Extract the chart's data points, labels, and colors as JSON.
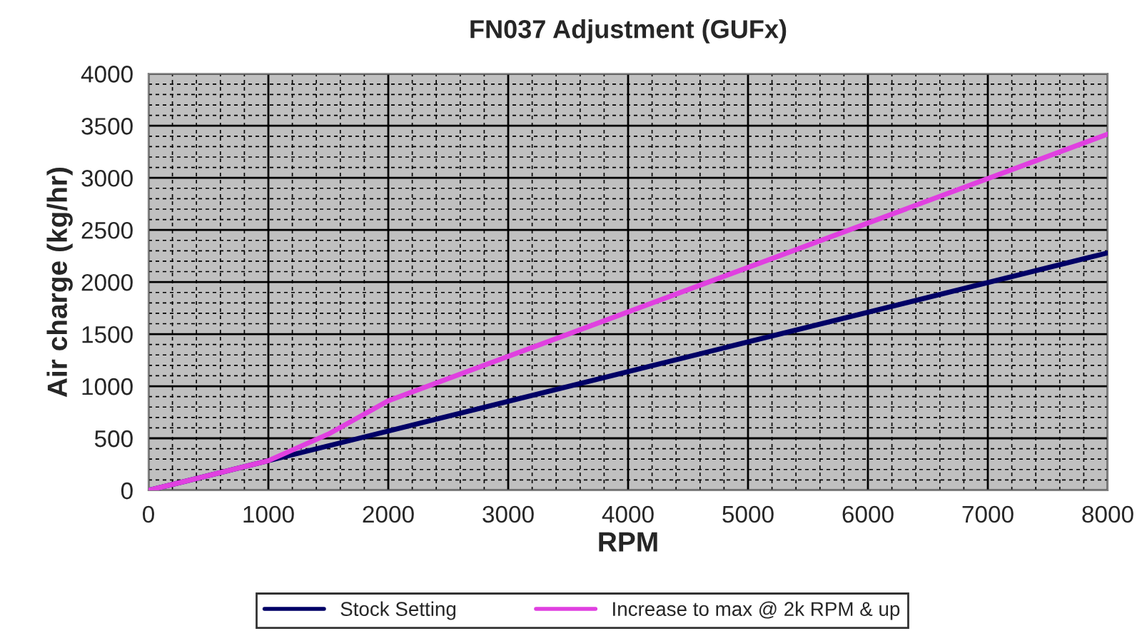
{
  "chart_data": {
    "type": "line",
    "title": "FN037 Adjustment (GUFx)",
    "xlabel": "RPM",
    "ylabel": "Air charge (kg/hr)",
    "xlim": [
      0,
      8000
    ],
    "xticks": [
      0,
      1000,
      2000,
      3000,
      4000,
      5000,
      6000,
      7000,
      8000
    ],
    "ylim": [
      0,
      4000
    ],
    "yticks": [
      0,
      500,
      1000,
      1500,
      2000,
      2500,
      3000,
      3500,
      4000
    ],
    "grid": true,
    "legend": "bottom",
    "marker": "none",
    "line_style": "solid",
    "series": [
      {
        "name": "Stock Setting",
        "color": "#000066",
        "x": [
          0,
          1000,
          2000,
          8000
        ],
        "values": [
          0,
          285,
          570,
          2280
        ]
      },
      {
        "name": "Increase to max @ 2k RPM & up",
        "color": "#e040e0",
        "x": [
          0,
          1000,
          1500,
          2000,
          8000
        ],
        "values": [
          0,
          285,
          540,
          860,
          3420
        ]
      }
    ]
  }
}
